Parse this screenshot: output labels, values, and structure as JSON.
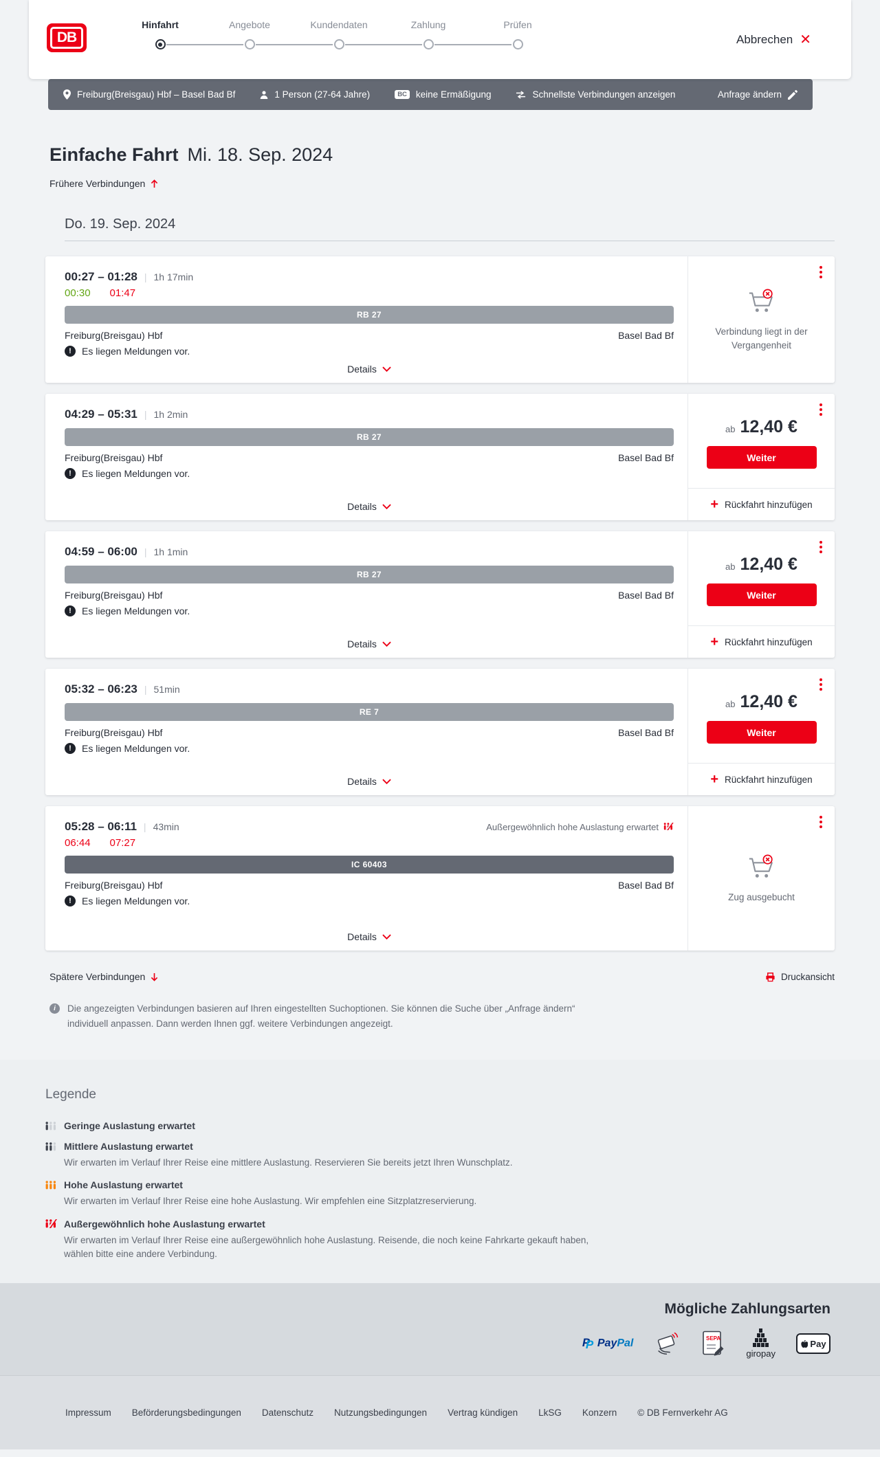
{
  "colors": {
    "red": "#ec0016",
    "green": "#63a615",
    "dark": "#3c414b",
    "text_dark": "#282d37",
    "gray": "#646973",
    "orange": "#f8860d",
    "pax_light": "#cdd1d6",
    "regional_bar": "#9aa0a7",
    "longdistance_bar": "#646973"
  },
  "header": {
    "logo": "DB",
    "cancel_label": "Abbrechen",
    "steps": [
      {
        "label": "Hinfahrt",
        "active": true
      },
      {
        "label": "Angebote",
        "active": false
      },
      {
        "label": "Kundendaten",
        "active": false
      },
      {
        "label": "Zahlung",
        "active": false
      },
      {
        "label": "Prüfen",
        "active": false
      }
    ]
  },
  "toolbar": {
    "route": "Freiburg(Breisgau) Hbf – Basel Bad Bf",
    "passengers": "1 Person (27-64 Jahre)",
    "bahncard_badge": "BC",
    "discount": "keine Ermäßigung",
    "fastest": "Schnellste Verbindungen anzeigen",
    "edit": "Anfrage ändern"
  },
  "results": {
    "title_bold": "Einfache Fahrt",
    "title_date": "Mi. 18. Sep. 2024",
    "earlier": "Frühere Verbindungen",
    "day_header": "Do. 19. Sep. 2024",
    "later": "Spätere Verbindungen",
    "print": "Druckansicht",
    "info_note": "Die angezeigten Verbindungen basieren auf Ihren eingestellten Suchoptionen. Sie können die Suche über „Anfrage ändern“ individuell anpassen. Dann werden Ihnen ggf. weitere Verbindungen angezeigt."
  },
  "journeys": [
    {
      "departure_arrival": "00:27 – 01:28",
      "duration": "1h 17min",
      "realtime": {
        "dep": {
          "time": "00:30",
          "status": "ontime"
        },
        "arr": {
          "time": "01:47",
          "status": "delayed"
        }
      },
      "train": {
        "label": "RB 27",
        "style": "regional"
      },
      "from": "Freiburg(Breisgau) Hbf",
      "to": "Basel Bad Bf",
      "notice": "Es liegen Meldungen vor.",
      "details_label": "Details",
      "offer": {
        "type": "past",
        "message": "Verbindung liegt in der Vergangenheit"
      }
    },
    {
      "departure_arrival": "04:29 – 05:31",
      "duration": "1h 2min",
      "train": {
        "label": "RB 27",
        "style": "regional"
      },
      "from": "Freiburg(Breisgau) Hbf",
      "to": "Basel Bad Bf",
      "notice": "Es liegen Meldungen vor.",
      "details_label": "Details",
      "offer": {
        "type": "price",
        "prefix": "ab",
        "price": "12,40 €",
        "cta": "Weiter",
        "add_return": "Rückfahrt hinzufügen"
      }
    },
    {
      "departure_arrival": "04:59 – 06:00",
      "duration": "1h 1min",
      "train": {
        "label": "RB 27",
        "style": "regional"
      },
      "from": "Freiburg(Breisgau) Hbf",
      "to": "Basel Bad Bf",
      "notice": "Es liegen Meldungen vor.",
      "details_label": "Details",
      "offer": {
        "type": "price",
        "prefix": "ab",
        "price": "12,40 €",
        "cta": "Weiter",
        "add_return": "Rückfahrt hinzufügen"
      }
    },
    {
      "departure_arrival": "05:32 – 06:23",
      "duration": "51min",
      "train": {
        "label": "RE 7",
        "style": "regional"
      },
      "from": "Freiburg(Breisgau) Hbf",
      "to": "Basel Bad Bf",
      "notice": "Es liegen Meldungen vor.",
      "details_label": "Details",
      "offer": {
        "type": "price",
        "prefix": "ab",
        "price": "12,40 €",
        "cta": "Weiter",
        "add_return": "Rückfahrt hinzufügen"
      }
    },
    {
      "departure_arrival": "05:28 – 06:11",
      "duration": "43min",
      "occupancy_note": "Außergewöhnlich hohe Auslastung erwartet",
      "realtime": {
        "dep": {
          "time": "06:44",
          "status": "delayed"
        },
        "arr": {
          "time": "07:27",
          "status": "delayed"
        }
      },
      "train": {
        "label": "IC 60403",
        "style": "longdistance"
      },
      "from": "Freiburg(Breisgau) Hbf",
      "to": "Basel Bad Bf",
      "notice": "Es liegen Meldungen vor.",
      "details_label": "Details",
      "offer": {
        "type": "soldout",
        "message": "Zug ausgebucht"
      }
    }
  ],
  "legend": {
    "title": "Legende",
    "items": [
      {
        "icon": "low",
        "label": "Geringe Auslastung erwartet",
        "desc": ""
      },
      {
        "icon": "mid",
        "label": "Mittlere Auslastung erwartet",
        "desc": "Wir erwarten im Verlauf Ihrer Reise eine mittlere Auslastung. Reservieren Sie bereits jetzt Ihren Wunschplatz."
      },
      {
        "icon": "high",
        "label": "Hohe Auslastung erwartet",
        "desc": "Wir erwarten im Verlauf Ihrer Reise eine hohe Auslastung. Wir empfehlen eine Sitzplatzreservierung."
      },
      {
        "icon": "veryhigh",
        "label": "Außergewöhnlich hohe Auslastung erwartet",
        "desc": "Wir erwarten im Verlauf Ihrer Reise eine außergewöhnlich hohe Auslastung. Reisende, die noch keine Fahrkarte gekauft haben, wählen bitte eine andere Verbindung."
      }
    ]
  },
  "payments": {
    "title": "Mögliche Zahlungsarten",
    "logos": {
      "pp_word1": "Pay",
      "pp_word2": "Pal",
      "pp_mark": "P",
      "sepa": "SEPA",
      "giropay": "giropay",
      "applepay": "Pay"
    }
  },
  "footer": {
    "links": [
      "Impressum",
      "Beförderungsbedingungen",
      "Datenschutz",
      "Nutzungsbedingungen",
      "Vertrag kündigen",
      "LkSG",
      "Konzern"
    ],
    "copyright": "© DB Fernverkehr AG"
  }
}
